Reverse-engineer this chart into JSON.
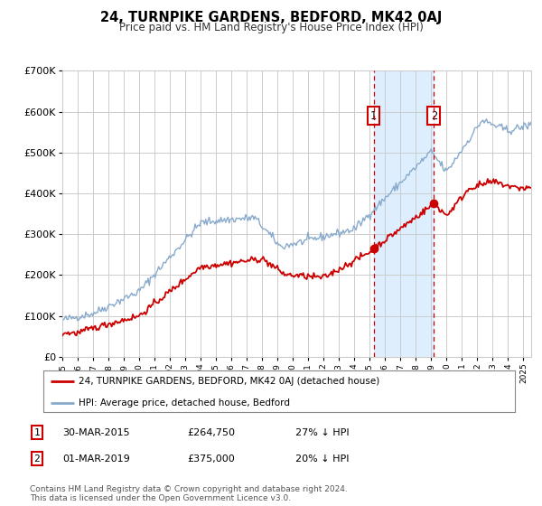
{
  "title": "24, TURNPIKE GARDENS, BEDFORD, MK42 0AJ",
  "subtitle": "Price paid vs. HM Land Registry's House Price Index (HPI)",
  "legend_line1": "24, TURNPIKE GARDENS, BEDFORD, MK42 0AJ (detached house)",
  "legend_line2": "HPI: Average price, detached house, Bedford",
  "footnote1": "Contains HM Land Registry data © Crown copyright and database right 2024.",
  "footnote2": "This data is licensed under the Open Government Licence v3.0.",
  "event1_label": "1",
  "event1_date": "30-MAR-2015",
  "event1_price": "£264,750",
  "event1_hpi": "27% ↓ HPI",
  "event1_x": 2015.25,
  "event1_y": 264750,
  "event2_label": "2",
  "event2_date": "01-MAR-2019",
  "event2_price": "£375,000",
  "event2_hpi": "20% ↓ HPI",
  "event2_x": 2019.17,
  "event2_y": 375000,
  "red_color": "#cc0000",
  "blue_color": "#88aacc",
  "shade_color": "#ddeeff",
  "grid_color": "#cccccc",
  "bg_color": "#ffffff",
  "ylim": [
    0,
    700000
  ],
  "xlim_start": 1995,
  "xlim_end": 2025.5,
  "yticks": [
    0,
    100000,
    200000,
    300000,
    400000,
    500000,
    600000,
    700000
  ],
  "ytick_labels": [
    "£0",
    "£100K",
    "£200K",
    "£300K",
    "£400K",
    "£500K",
    "£600K",
    "£700K"
  ]
}
